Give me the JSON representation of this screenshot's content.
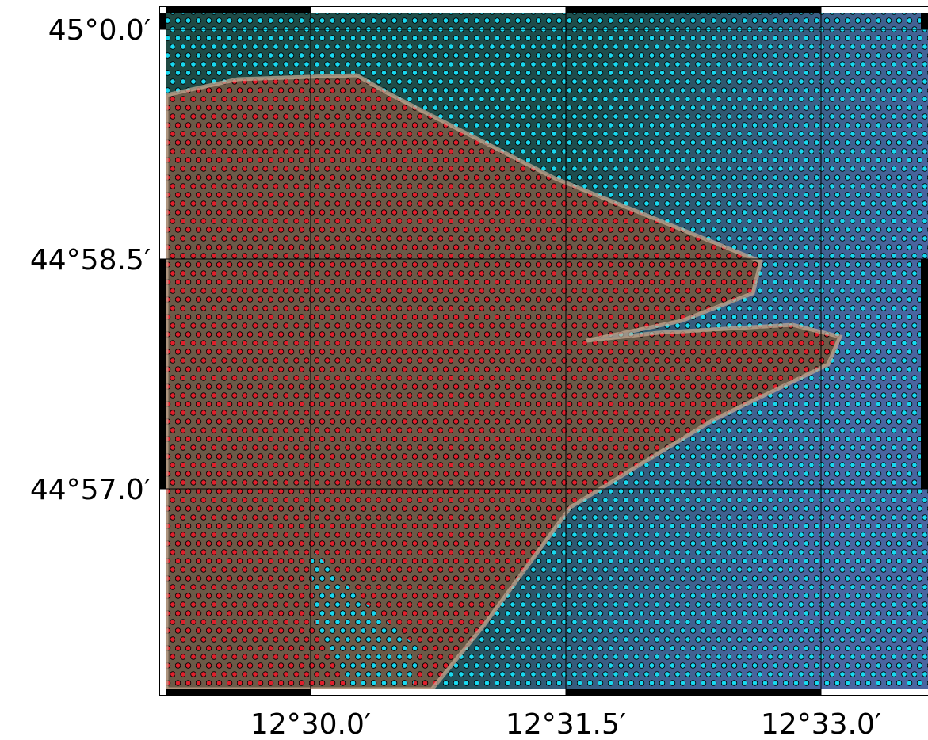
{
  "map": {
    "lat_labels": [
      "45°0.0′",
      "44°58.5′",
      "44°57.0′"
    ],
    "lon_labels": [
      "12°30.0′",
      "12°31.5′",
      "12°33.0′"
    ]
  }
}
